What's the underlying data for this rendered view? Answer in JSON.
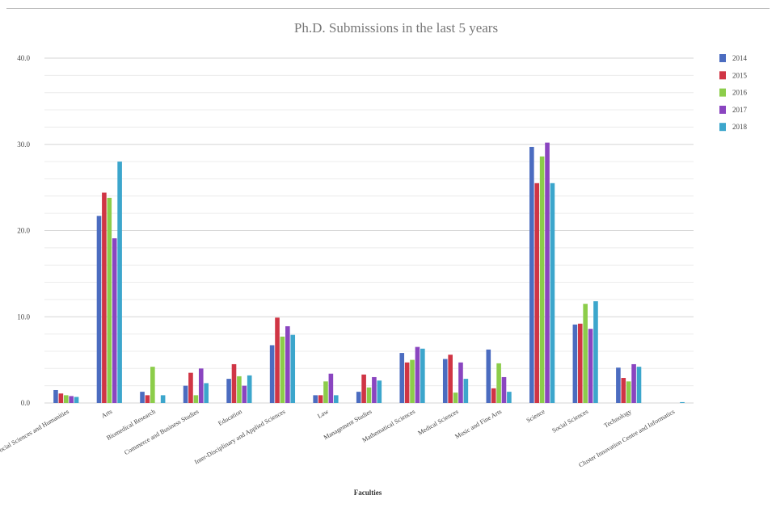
{
  "chart_data": {
    "type": "bar",
    "title": "Ph.D. Submissions in the last 5 years",
    "xlabel": "Faculties",
    "ylabel": "",
    "ylim": [
      0,
      40
    ],
    "yticks": [
      "0.0",
      "10.0",
      "20.0",
      "30.0",
      "40.0"
    ],
    "grid": true,
    "legend_position": "right",
    "categories": [
      "Social Sciences and Humanities",
      "Arts",
      "Biomedical Research",
      "Commerce and Business Studies",
      "Education",
      "Inter-Disciplinary and Applied Sciences",
      "Law",
      "Management Studies",
      "Mathematical Sciences",
      "Medical Sciences",
      "Music and Fine Arts",
      "Science",
      "Social Sciences",
      "Technology",
      "Cluster Innovation Centre and Informatics"
    ],
    "series": [
      {
        "name": "2014",
        "color": "#4b6cc0",
        "values": [
          1.5,
          21.7,
          1.3,
          2.0,
          2.8,
          6.7,
          0.9,
          1.3,
          5.8,
          5.1,
          6.2,
          29.7,
          9.1,
          4.1,
          0.0
        ]
      },
      {
        "name": "2015",
        "color": "#d03545",
        "values": [
          1.1,
          24.4,
          0.9,
          3.5,
          4.5,
          9.9,
          0.9,
          3.3,
          4.7,
          5.6,
          1.7,
          25.5,
          9.2,
          2.9,
          0.0
        ]
      },
      {
        "name": "2016",
        "color": "#8ccd4a",
        "values": [
          0.9,
          23.8,
          4.2,
          0.9,
          3.1,
          7.7,
          2.5,
          1.8,
          5.0,
          1.2,
          4.6,
          28.6,
          11.5,
          2.5,
          0.0
        ]
      },
      {
        "name": "2017",
        "color": "#8a45c0",
        "values": [
          0.8,
          19.1,
          0.0,
          4.0,
          2.0,
          8.9,
          3.4,
          3.0,
          6.5,
          4.7,
          3.0,
          30.2,
          8.6,
          4.5,
          0.0
        ]
      },
      {
        "name": "2018",
        "color": "#3ca6cc",
        "values": [
          0.7,
          28.0,
          0.9,
          2.3,
          3.2,
          7.9,
          0.9,
          2.6,
          6.3,
          2.8,
          1.3,
          25.5,
          11.8,
          4.2,
          0.1
        ]
      }
    ]
  }
}
